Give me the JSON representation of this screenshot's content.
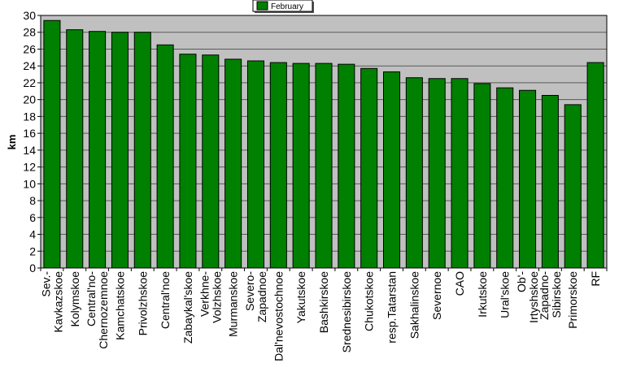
{
  "chart_data": {
    "type": "bar",
    "ylabel": "km",
    "ylim": [
      0,
      30
    ],
    "ytick_step": 2,
    "grid": true,
    "legend_position": "top-center",
    "series": [
      {
        "name": "February",
        "color": "#008000",
        "values": [
          29.4,
          28.3,
          28.1,
          28.0,
          28.0,
          26.5,
          25.4,
          25.3,
          24.8,
          24.6,
          24.4,
          24.3,
          24.3,
          24.2,
          23.7,
          23.3,
          22.6,
          22.5,
          22.5,
          21.9,
          21.4,
          21.1,
          20.5,
          19.4,
          24.4
        ]
      }
    ],
    "categories": [
      [
        "Sev.-",
        "Kavkazskoe"
      ],
      [
        "Kolymskoe"
      ],
      [
        "Central'no-",
        "Chernozemnoe"
      ],
      [
        "Kamchatskoe"
      ],
      [
        "Privolzhskoe"
      ],
      [
        "Central'noe"
      ],
      [
        "Zabaykal'skoe"
      ],
      [
        "Verkhne-",
        "Volzhskoe"
      ],
      [
        "Murmanskoe"
      ],
      [
        "Severo-",
        "Zapadnoe"
      ],
      [
        "Dal'nevostochnoe"
      ],
      [
        "Yakutskoe"
      ],
      [
        "Bashkirskoe"
      ],
      [
        "Srednesibirskoe"
      ],
      [
        "Chukotskoe"
      ],
      [
        "resp.Tatarstan"
      ],
      [
        "Sakhalinskoe"
      ],
      [
        "Severnoe"
      ],
      [
        "CAO"
      ],
      [
        "Irkutskoe"
      ],
      [
        "Ural'skoe"
      ],
      [
        "Ob'-",
        "Irtyshskoe"
      ],
      [
        "Zapadno-",
        "Sibirskoe"
      ],
      [
        "Primorskoe"
      ],
      [
        "RF"
      ]
    ],
    "plot_background": "#c0c0c0",
    "bar_outline": "#000000"
  }
}
